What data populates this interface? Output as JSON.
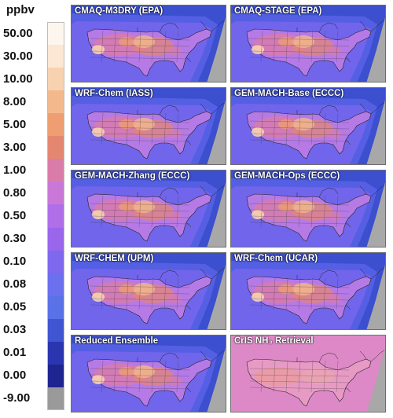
{
  "legend": {
    "unit": "ppbv",
    "labels": [
      "50.00",
      "30.00",
      "10.00",
      "8.00",
      "5.00",
      "3.00",
      "1.00",
      "0.80",
      "0.50",
      "0.30",
      "0.10",
      "0.08",
      "0.05",
      "0.03",
      "0.01",
      "0.00",
      "-9.00"
    ],
    "colors": [
      "#fdf6ee",
      "#fbe7d3",
      "#f8d2b0",
      "#f3b98d",
      "#ee9e72",
      "#e48770",
      "#d97ca9",
      "#c978d8",
      "#b06ee8",
      "#9a66ec",
      "#7e68ee",
      "#6a70ee",
      "#5a72e8",
      "#3f55d2",
      "#2a35b0",
      "#1f2590",
      "#9a9a9a"
    ]
  },
  "panels": [
    {
      "title": "CMAQ-M3DRY (EPA)",
      "style": "model"
    },
    {
      "title": "CMAQ-STAGE (EPA)",
      "style": "model"
    },
    {
      "title": "WRF-Chem (IASS)",
      "style": "model"
    },
    {
      "title": "GEM-MACH-Base (ECCC)",
      "style": "model"
    },
    {
      "title": "GEM-MACH-Zhang (ECCC)",
      "style": "model"
    },
    {
      "title": "GEM-MACH-Ops (ECCC)",
      "style": "model"
    },
    {
      "title": "WRF-CHEM (UPM)",
      "style": "model"
    },
    {
      "title": "WRF-Chem (UCAR)",
      "style": "model"
    },
    {
      "title": "Reduced Ensemble",
      "style": "model"
    },
    {
      "title": "CrIS NH₃ Retrieval",
      "style": "retrieval"
    }
  ]
}
